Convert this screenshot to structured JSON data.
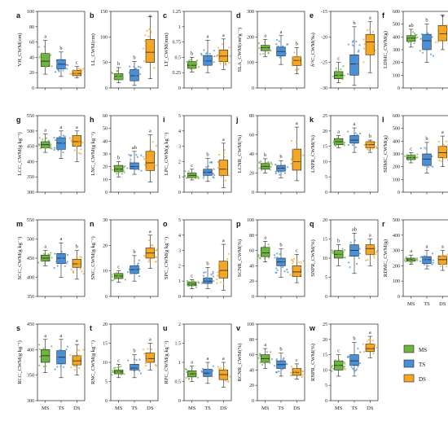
{
  "groups": [
    "MS",
    "TS",
    "DS"
  ],
  "colors": {
    "MS": "#6fb43f",
    "TS": "#4a90d9",
    "DS": "#f5a623"
  },
  "legend": {
    "items": [
      "MS",
      "TS",
      "DS"
    ],
    "placement": "bottom-right"
  },
  "chart_data": [
    {
      "type": "box",
      "panel": "a",
      "ylabel": "VH_CWM(cm)",
      "ylim": [
        0,
        100
      ],
      "ticks": [
        0,
        20,
        40,
        60,
        80,
        100
      ],
      "categories": [
        "MS",
        "TS",
        "DS"
      ],
      "median": [
        35,
        31,
        19
      ],
      "q1": [
        28,
        25,
        16
      ],
      "q3": [
        45,
        37,
        23
      ],
      "whisker_low": [
        18,
        15,
        13
      ],
      "whisker_high": [
        62,
        47,
        28
      ],
      "letters": [
        "a",
        "b",
        "c"
      ]
    },
    {
      "type": "box",
      "panel": "b",
      "ylabel": "LL_CWM(cm)",
      "ylim": [
        0,
        150
      ],
      "ticks": [
        0,
        50,
        100,
        150
      ],
      "categories": [
        "MS",
        "TS",
        "DS"
      ],
      "median": [
        23,
        24,
        70
      ],
      "q1": [
        16,
        14,
        50
      ],
      "q3": [
        28,
        36,
        95
      ],
      "whisker_low": [
        10,
        5,
        18
      ],
      "whisker_high": [
        40,
        52,
        140
      ],
      "letters": [
        "b",
        "b",
        "a"
      ]
    },
    {
      "type": "box",
      "panel": "c",
      "ylabel": "LT_CWM(mm)",
      "ylim": [
        0,
        1.25
      ],
      "ticks": [
        0,
        0.25,
        0.5,
        0.75,
        1.0,
        1.25
      ],
      "categories": [
        "MS",
        "TS",
        "DS"
      ],
      "median": [
        0.37,
        0.44,
        0.52
      ],
      "q1": [
        0.32,
        0.37,
        0.43
      ],
      "q3": [
        0.43,
        0.53,
        0.62
      ],
      "whisker_low": [
        0.26,
        0.25,
        0.3
      ],
      "whisker_high": [
        0.5,
        0.78,
        0.8
      ],
      "letters": [
        "b",
        "a",
        "a"
      ]
    },
    {
      "type": "box",
      "panel": "d",
      "ylabel": "SLA_CWM(cm²g⁻¹)",
      "ylim": [
        0,
        300
      ],
      "ticks": [
        0,
        100,
        200,
        300
      ],
      "categories": [
        "MS",
        "TS",
        "DS"
      ],
      "median": [
        158,
        143,
        108
      ],
      "q1": [
        146,
        125,
        88
      ],
      "q3": [
        167,
        160,
        122
      ],
      "whisker_low": [
        122,
        92,
        55
      ],
      "whisker_high": [
        190,
        205,
        158
      ],
      "letters": [
        "a",
        "a",
        "b"
      ]
    },
    {
      "type": "box",
      "panel": "e",
      "ylabel": "δ¹³C_CWM(‰)",
      "ylim": [
        -30,
        -15
      ],
      "ticks": [
        -30,
        -25,
        -20,
        -15
      ],
      "categories": [
        "MS",
        "TS",
        "DS"
      ],
      "median": [
        -27.5,
        -25.3,
        -21
      ],
      "q1": [
        -28.2,
        -27.5,
        -23.5
      ],
      "q3": [
        -26.8,
        -23.5,
        -19.5
      ],
      "whisker_low": [
        -29,
        -29.5,
        -27
      ],
      "whisker_high": [
        -25,
        -18,
        -17
      ],
      "letters": [
        "c",
        "b",
        "a"
      ]
    },
    {
      "type": "box",
      "panel": "f",
      "ylabel": "LDMC_CWM(g)",
      "ylim": [
        0,
        600
      ],
      "ticks": [
        0,
        100,
        200,
        300,
        400,
        500,
        600
      ],
      "categories": [
        "MS",
        "TS",
        "DS"
      ],
      "median": [
        390,
        370,
        425
      ],
      "q1": [
        365,
        300,
        370
      ],
      "q3": [
        410,
        420,
        490
      ],
      "whisker_low": [
        320,
        200,
        300
      ],
      "whisker_high": [
        460,
        500,
        570
      ],
      "letters": [
        "ab",
        "b",
        "a"
      ]
    },
    {
      "type": "box",
      "panel": "g",
      "ylabel": "LCC_CWM(g kg⁻¹)",
      "ylim": [
        300,
        550
      ],
      "ticks": [
        300,
        350,
        400,
        450,
        500,
        550
      ],
      "categories": [
        "MS",
        "TS",
        "DS"
      ],
      "median": [
        455,
        460,
        465
      ],
      "q1": [
        445,
        440,
        450
      ],
      "q3": [
        465,
        478,
        485
      ],
      "whisker_low": [
        430,
        410,
        400
      ],
      "whisker_high": [
        490,
        500,
        500
      ],
      "letters": [
        "a",
        "a",
        "a"
      ]
    },
    {
      "type": "box",
      "panel": "h",
      "ylabel": "LNC_CWM(g kg⁻¹)",
      "ylim": [
        0,
        60
      ],
      "ticks": [
        0,
        10,
        20,
        30,
        40,
        50,
        60
      ],
      "categories": [
        "MS",
        "TS",
        "DS"
      ],
      "median": [
        18,
        20,
        23
      ],
      "q1": [
        16,
        18,
        17
      ],
      "q3": [
        21,
        23,
        32
      ],
      "whisker_low": [
        12,
        14,
        8
      ],
      "whisker_high": [
        24,
        32,
        45
      ],
      "letters": [
        "b",
        "ab",
        "a"
      ]
    },
    {
      "type": "box",
      "panel": "i",
      "ylabel": "LPC_CWM(g kg⁻¹)",
      "ylim": [
        0,
        5
      ],
      "ticks": [
        0,
        1,
        2,
        3,
        4,
        5
      ],
      "categories": [
        "MS",
        "TS",
        "DS"
      ],
      "median": [
        1.1,
        1.3,
        1.5
      ],
      "q1": [
        0.95,
        1.1,
        1.1
      ],
      "q3": [
        1.25,
        1.5,
        2.1
      ],
      "whisker_low": [
        0.8,
        0.7,
        0.3
      ],
      "whisker_high": [
        1.5,
        2.2,
        3.2
      ],
      "letters": [
        "c",
        "b",
        "a"
      ]
    },
    {
      "type": "box",
      "panel": "j",
      "ylabel": "LCNR_CWM(%)",
      "ylim": [
        0,
        80
      ],
      "ticks": [
        0,
        20,
        40,
        60,
        80
      ],
      "categories": [
        "MS",
        "TS",
        "DS"
      ],
      "median": [
        27,
        25,
        32
      ],
      "q1": [
        24,
        22,
        23
      ],
      "q3": [
        30,
        28,
        45
      ],
      "whisker_low": [
        20,
        15,
        12
      ],
      "whisker_high": [
        35,
        33,
        68
      ],
      "letters": [
        "b",
        "b",
        "a"
      ]
    },
    {
      "type": "box",
      "panel": "k",
      "ylabel": "LNPR_CWM(%)",
      "ylim": [
        0,
        25
      ],
      "ticks": [
        0,
        5,
        10,
        15,
        20,
        25
      ],
      "categories": [
        "MS",
        "TS",
        "DS"
      ],
      "median": [
        16.5,
        17,
        15.5
      ],
      "q1": [
        15.5,
        16,
        14.5
      ],
      "q3": [
        17.5,
        18.5,
        16.5
      ],
      "whisker_low": [
        14.5,
        13,
        13
      ],
      "whisker_high": [
        18.5,
        21,
        17
      ],
      "letters": [
        "a",
        "a",
        "b"
      ]
    },
    {
      "type": "box",
      "panel": "l",
      "ylabel": "SDMC_CWM(g)",
      "ylim": [
        0,
        600
      ],
      "ticks": [
        0,
        100,
        200,
        300,
        400,
        500,
        600
      ],
      "categories": [
        "MS",
        "TS",
        "DS"
      ],
      "median": [
        270,
        260,
        310
      ],
      "q1": [
        255,
        210,
        270
      ],
      "q3": [
        290,
        300,
        360
      ],
      "whisker_low": [
        230,
        150,
        200
      ],
      "whisker_high": [
        310,
        390,
        440
      ],
      "letters": [
        "c",
        "b",
        "a"
      ]
    },
    {
      "type": "box",
      "panel": "m",
      "ylabel": "SCC_CWM(g kg⁻¹)",
      "ylim": [
        350,
        550
      ],
      "ticks": [
        350,
        400,
        450,
        500,
        550
      ],
      "categories": [
        "MS",
        "TS",
        "DS"
      ],
      "median": [
        450,
        450,
        435
      ],
      "q1": [
        442,
        436,
        426
      ],
      "q3": [
        458,
        462,
        447
      ],
      "whisker_low": [
        430,
        400,
        395
      ],
      "whisker_high": [
        470,
        490,
        470
      ],
      "letters": [
        "a",
        "a",
        "b"
      ]
    },
    {
      "type": "box",
      "panel": "n",
      "ylabel": "SNC_CWM(g kg⁻¹)",
      "ylim": [
        0,
        30
      ],
      "ticks": [
        0,
        10,
        20,
        30
      ],
      "categories": [
        "MS",
        "TS",
        "DS"
      ],
      "median": [
        8,
        10.5,
        17
      ],
      "q1": [
        7,
        9,
        15
      ],
      "q3": [
        9,
        12,
        19
      ],
      "whisker_low": [
        5.5,
        6,
        11
      ],
      "whisker_high": [
        10,
        16,
        24
      ],
      "letters": [
        "c",
        "b",
        "a"
      ]
    },
    {
      "type": "box",
      "panel": "o",
      "ylabel": "SPC_CWM(g kg⁻¹)",
      "ylim": [
        0,
        5
      ],
      "ticks": [
        0,
        1,
        2,
        3,
        4,
        5
      ],
      "categories": [
        "MS",
        "TS",
        "DS"
      ],
      "median": [
        0.8,
        1.0,
        1.7
      ],
      "q1": [
        0.7,
        0.85,
        1.2
      ],
      "q3": [
        0.95,
        1.2,
        2.3
      ],
      "whisker_low": [
        0.5,
        0.5,
        0.4
      ],
      "whisker_high": [
        1.1,
        1.9,
        3.4
      ],
      "letters": [
        "c",
        "b",
        "a"
      ]
    },
    {
      "type": "box",
      "panel": "p",
      "ylabel": "SCNR_CWM(%)",
      "ylim": [
        0,
        100
      ],
      "ticks": [
        0,
        20,
        40,
        60,
        80,
        100
      ],
      "categories": [
        "MS",
        "TS",
        "DS"
      ],
      "median": [
        57,
        45,
        32
      ],
      "q1": [
        52,
        40,
        26
      ],
      "q3": [
        64,
        50,
        40
      ],
      "whisker_low": [
        45,
        25,
        18
      ],
      "whisker_high": [
        72,
        62,
        55
      ],
      "letters": [
        "a",
        "b",
        "c"
      ]
    },
    {
      "type": "box",
      "panel": "q",
      "ylabel": "SNPR_CWM(%)",
      "ylim": [
        0,
        20
      ],
      "ticks": [
        0,
        5,
        10,
        15,
        20
      ],
      "categories": [
        "MS",
        "TS",
        "DS"
      ],
      "median": [
        11,
        12,
        12.5
      ],
      "q1": [
        10,
        10.5,
        11
      ],
      "q3": [
        12,
        13.5,
        13.5
      ],
      "whisker_low": [
        8,
        6,
        8
      ],
      "whisker_high": [
        13.5,
        16.5,
        15
      ],
      "letters": [
        "b",
        "ab",
        "a"
      ]
    },
    {
      "type": "box",
      "panel": "r",
      "ylabel": "RDMC_CWM(g)",
      "ylim": [
        0,
        500
      ],
      "ticks": [
        0,
        100,
        200,
        300,
        400,
        500
      ],
      "categories": [
        "MS",
        "TS",
        "DS"
      ],
      "median": [
        240,
        240,
        240
      ],
      "q1": [
        230,
        215,
        210
      ],
      "q3": [
        250,
        260,
        265
      ],
      "whisker_low": [
        210,
        180,
        170
      ],
      "whisker_high": [
        270,
        300,
        300
      ],
      "letters": [
        "a",
        "a",
        "a"
      ]
    },
    {
      "type": "box",
      "panel": "s",
      "ylabel": "RCC_CWM(g kg⁻¹)",
      "ylim": [
        300,
        450
      ],
      "ticks": [
        300,
        350,
        400,
        450
      ],
      "categories": [
        "MS",
        "TS",
        "DS"
      ],
      "median": [
        388,
        385,
        378
      ],
      "q1": [
        375,
        372,
        370
      ],
      "q3": [
        400,
        398,
        388
      ],
      "whisker_low": [
        355,
        345,
        350
      ],
      "whisker_high": [
        420,
        420,
        410
      ],
      "letters": [
        "a",
        "a",
        "a"
      ]
    },
    {
      "type": "box",
      "panel": "t",
      "ylabel": "RNC_CWM(g kg⁻¹)",
      "ylim": [
        0,
        20
      ],
      "ticks": [
        0,
        5,
        10,
        15,
        20
      ],
      "categories": [
        "MS",
        "TS",
        "DS"
      ],
      "median": [
        7.5,
        8.5,
        11
      ],
      "q1": [
        7,
        8,
        10
      ],
      "q3": [
        8,
        9.5,
        12.5
      ],
      "whisker_low": [
        6,
        6,
        8
      ],
      "whisker_high": [
        9.5,
        12,
        15
      ],
      "letters": [
        "c",
        "b",
        "a"
      ]
    },
    {
      "type": "box",
      "panel": "u",
      "ylabel": "RPC_CWM(g kg⁻¹)",
      "ylim": [
        0,
        2
      ],
      "ticks": [
        0,
        0.5,
        1.0,
        1.5,
        2.0
      ],
      "categories": [
        "MS",
        "TS",
        "DS"
      ],
      "median": [
        0.7,
        0.72,
        0.68
      ],
      "q1": [
        0.62,
        0.63,
        0.55
      ],
      "q3": [
        0.78,
        0.82,
        0.8
      ],
      "whisker_low": [
        0.5,
        0.45,
        0.35
      ],
      "whisker_high": [
        0.9,
        1.0,
        1.0
      ],
      "letters": [
        "a",
        "a",
        "a"
      ]
    },
    {
      "type": "box",
      "panel": "v",
      "ylabel": "RCNR_CWM(%)",
      "ylim": [
        0,
        100
      ],
      "ticks": [
        0,
        20,
        40,
        60,
        80,
        100
      ],
      "categories": [
        "MS",
        "TS",
        "DS"
      ],
      "median": [
        55,
        47,
        37
      ],
      "q1": [
        50,
        42,
        33
      ],
      "q3": [
        60,
        52,
        42
      ],
      "whisker_low": [
        42,
        32,
        28
      ],
      "whisker_high": [
        68,
        62,
        48
      ],
      "letters": [
        "a",
        "b",
        "c"
      ]
    },
    {
      "type": "box",
      "panel": "w",
      "ylabel": "RNPR_CWM(%)",
      "ylim": [
        0,
        25
      ],
      "ticks": [
        0,
        5,
        10,
        15,
        20,
        25
      ],
      "categories": [
        "MS",
        "TS",
        "DS"
      ],
      "median": [
        11.5,
        13,
        17
      ],
      "q1": [
        10,
        11.5,
        16
      ],
      "q3": [
        13,
        15,
        18.5
      ],
      "whisker_low": [
        8,
        8,
        14
      ],
      "whisker_high": [
        15,
        19,
        21
      ],
      "letters": [
        "c",
        "b",
        "a"
      ]
    }
  ]
}
